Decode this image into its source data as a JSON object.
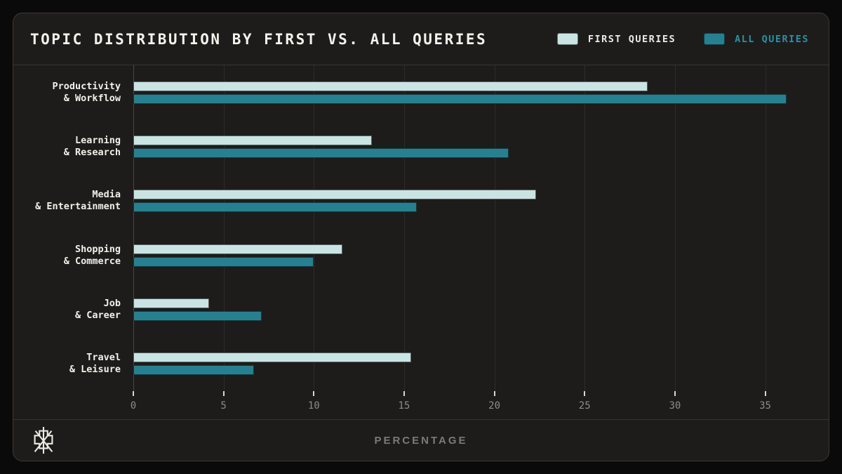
{
  "card": {
    "title": "TOPIC DISTRIBUTION BY FIRST VS. ALL QUERIES",
    "footer_label": "PERCENTAGE",
    "logo": "starburst-asterisk-logo"
  },
  "colors": {
    "background": "#0a0a0a",
    "card_background": "#1d1c1a",
    "border": "#3b3a37",
    "gridline": "#2d2c29",
    "axis_line": "#4a4845",
    "first_queries": "#c9e4e3",
    "all_queries": "#27808f",
    "all_queries_text": "#2f8fa0",
    "first_queries_text": "#eceae4",
    "tick_text": "#8e8c86"
  },
  "legend": [
    {
      "label": "FIRST QUERIES",
      "color": "#c9e4e3",
      "text_color": "#eceae4"
    },
    {
      "label": "ALL QUERIES",
      "color": "#27808f",
      "text_color": "#2f8fa0"
    }
  ],
  "chart_data": {
    "type": "bar",
    "orientation": "horizontal",
    "title": "TOPIC DISTRIBUTION BY FIRST VS. ALL QUERIES",
    "categories": [
      "Productivity & Workflow",
      "Learning & Research",
      "Media & Entertainment",
      "Shopping & Commerce",
      "Job & Career",
      "Travel & Leisure"
    ],
    "category_lines": [
      [
        "Productivity",
        "& Workflow"
      ],
      [
        "Learning",
        "& Research"
      ],
      [
        "Media",
        "& Entertainment"
      ],
      [
        "Shopping",
        "& Commerce"
      ],
      [
        "Job",
        "& Career"
      ],
      [
        "Travel",
        "& Leisure"
      ]
    ],
    "series": [
      {
        "name": "FIRST QUERIES",
        "color": "#c9e4e3",
        "values": [
          28.5,
          13.2,
          22.3,
          11.6,
          4.2,
          15.4
        ]
      },
      {
        "name": "ALL QUERIES",
        "color": "#27808f",
        "values": [
          36.2,
          20.8,
          15.7,
          10.0,
          7.1,
          6.7
        ]
      }
    ],
    "xlabel": "PERCENTAGE",
    "x_ticks": [
      0,
      5,
      10,
      15,
      20,
      25,
      30,
      35
    ],
    "xlim": [
      0,
      37
    ],
    "grid": true,
    "legend_position": "top-right"
  }
}
